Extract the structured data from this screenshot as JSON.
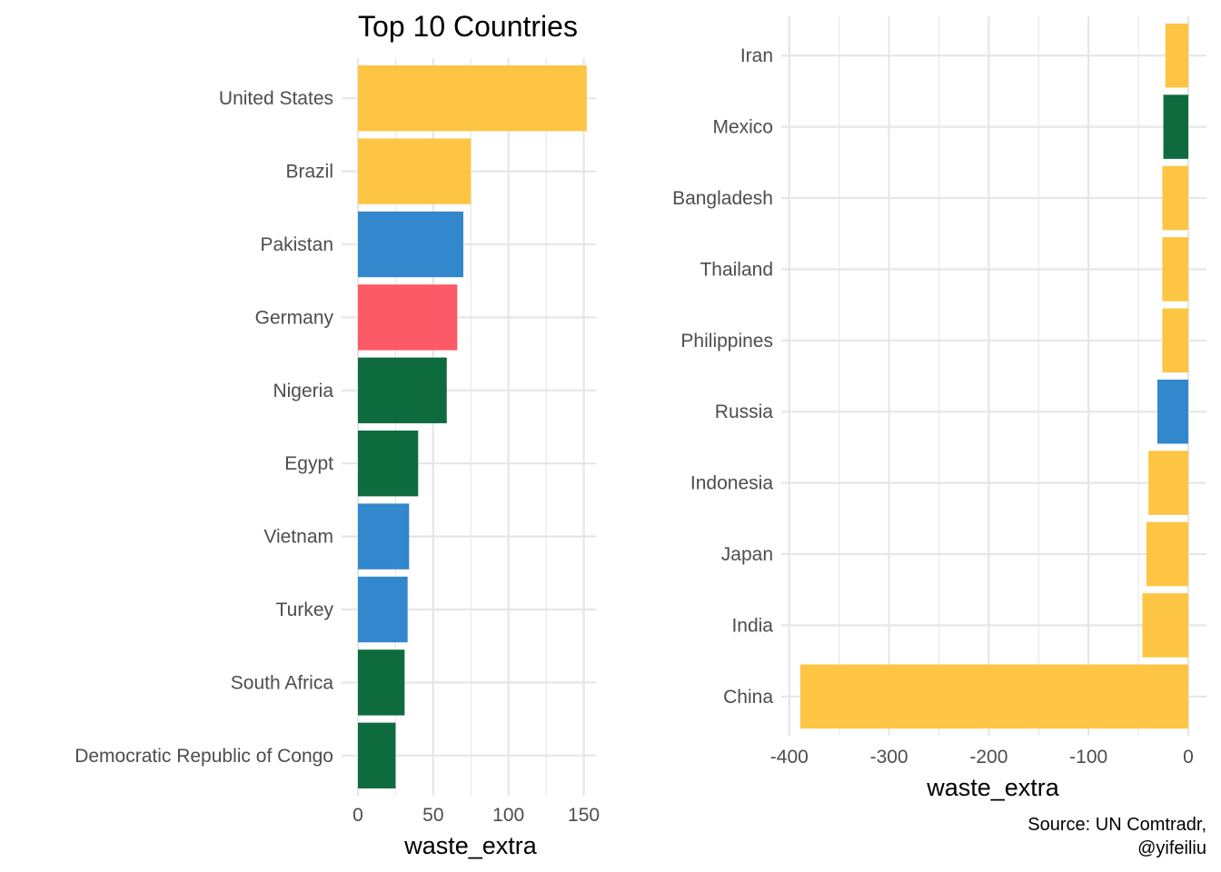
{
  "title": "Top 10 Countries",
  "caption_lines": [
    "Source: UN Comtradr,",
    "@yifeiliu"
  ],
  "colors": {
    "yellow": "#FDC543",
    "green": "#0E6B3E",
    "blue": "#3387CC",
    "red": "#FC5A66"
  },
  "chart_data": [
    {
      "type": "bar",
      "orientation": "horizontal",
      "title": "Top 10 Countries",
      "xlabel": "waste_extra",
      "ylabel": "",
      "xlim": [
        0,
        160
      ],
      "x_ticks": [
        0,
        50,
        100,
        150
      ],
      "categories": [
        "United States",
        "Brazil",
        "Pakistan",
        "Germany",
        "Nigeria",
        "Egypt",
        "Vietnam",
        "Turkey",
        "South Africa",
        "Democratic Republic of Congo"
      ],
      "values": [
        152,
        75,
        70,
        66,
        59,
        40,
        34,
        33,
        31,
        25
      ],
      "bar_colors": [
        "#FDC543",
        "#FDC543",
        "#3387CC",
        "#FC5A66",
        "#0E6B3E",
        "#0E6B3E",
        "#3387CC",
        "#3387CC",
        "#0E6B3E",
        "#0E6B3E"
      ],
      "grid": true,
      "legend": "none"
    },
    {
      "type": "bar",
      "orientation": "horizontal",
      "title": "",
      "xlabel": "waste_extra",
      "ylabel": "",
      "xlim": [
        -392,
        0
      ],
      "x_ticks": [
        -400,
        -300,
        -200,
        -100,
        0
      ],
      "categories": [
        "Iran",
        "Mexico",
        "Bangladesh",
        "Thailand",
        "Philippines",
        "Russia",
        "Indonesia",
        "Japan",
        "India",
        "China"
      ],
      "values": [
        -23,
        -25,
        -26,
        -26,
        -26,
        -31,
        -40,
        -42,
        -46,
        -389
      ],
      "bar_colors": [
        "#FDC543",
        "#0E6B3E",
        "#FDC543",
        "#FDC543",
        "#FDC543",
        "#3387CC",
        "#FDC543",
        "#FDC543",
        "#FDC543",
        "#FDC543"
      ],
      "grid": true,
      "legend": "none"
    }
  ]
}
